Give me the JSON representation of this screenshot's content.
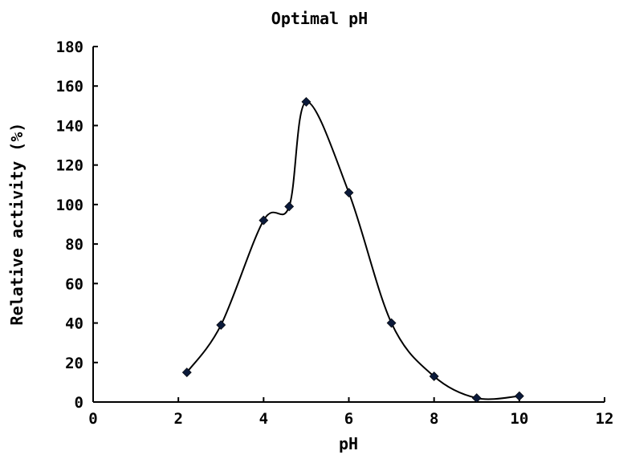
{
  "chart_data": {
    "type": "line",
    "title": "Optimal pH",
    "xlabel": "pH",
    "ylabel": "Relative activity (%)",
    "xlim": [
      0,
      12
    ],
    "ylim": [
      0,
      180
    ],
    "xticks": [
      0,
      2,
      4,
      6,
      8,
      10,
      12
    ],
    "yticks": [
      0,
      20,
      40,
      60,
      80,
      100,
      120,
      140,
      160,
      180
    ],
    "grid": false,
    "smooth": true,
    "marker": "diamond",
    "colors": {
      "line": "#000000",
      "marker": "#0b1a3a"
    },
    "series": [
      {
        "x": [
          2.2,
          3,
          4,
          4.6,
          5,
          6,
          7,
          8,
          9,
          10
        ],
        "y": [
          15,
          39,
          92,
          99,
          152,
          106,
          40,
          13,
          2,
          3
        ]
      }
    ]
  }
}
